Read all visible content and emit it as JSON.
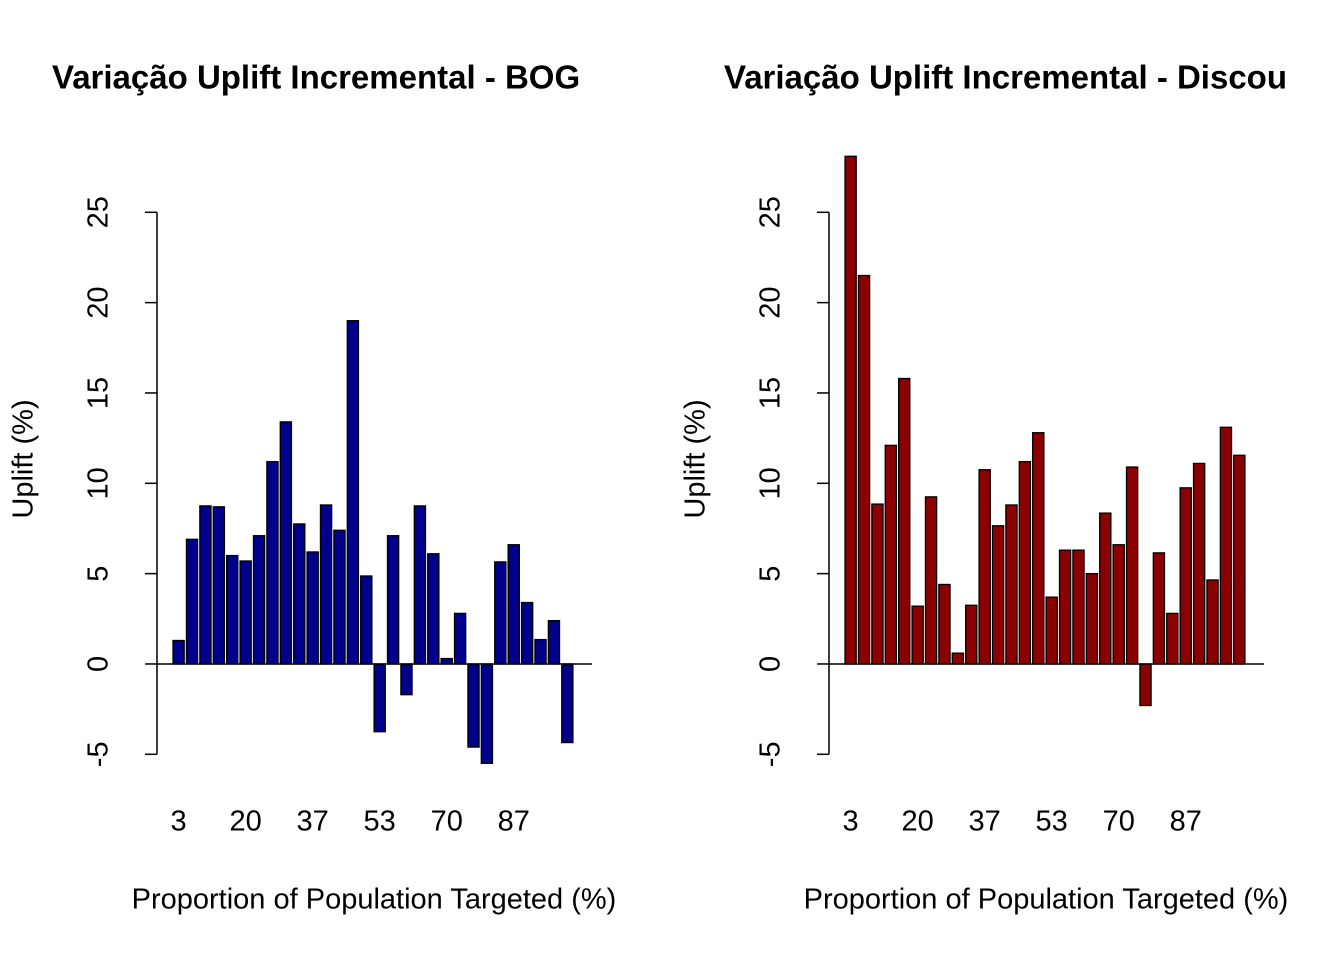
{
  "chart_data": [
    {
      "type": "bar",
      "title": "Variação Uplift Incremental - BOG",
      "xlabel": "Proportion of Population Targeted (%)",
      "ylabel": "Uplift (%)",
      "categories": [
        "3",
        null,
        null,
        null,
        null,
        "20",
        null,
        null,
        null,
        null,
        "37",
        null,
        null,
        null,
        null,
        "53",
        null,
        null,
        null,
        null,
        "70",
        null,
        null,
        null,
        null,
        "87",
        null,
        null,
        null,
        null
      ],
      "values": [
        1.3,
        6.9,
        8.75,
        8.7,
        6.0,
        5.7,
        7.1,
        11.2,
        13.4,
        7.75,
        6.2,
        8.8,
        7.4,
        19.0,
        4.87,
        -3.75,
        7.1,
        -1.7,
        8.75,
        6.1,
        0.3,
        2.8,
        -4.6,
        -5.5,
        5.65,
        6.6,
        3.4,
        1.35,
        2.4,
        -4.35
      ],
      "color": "#00008b",
      "ylim": [
        -6.3,
        29.3
      ],
      "yticks": [
        -5,
        0,
        5,
        10,
        15,
        20,
        25
      ]
    },
    {
      "type": "bar",
      "title": "Variação Uplift Incremental - Discou",
      "xlabel": "Proportion of Population Targeted (%)",
      "ylabel": "Uplift (%)",
      "categories": [
        "3",
        null,
        null,
        null,
        null,
        "20",
        null,
        null,
        null,
        null,
        "37",
        null,
        null,
        null,
        null,
        "53",
        null,
        null,
        null,
        null,
        "70",
        null,
        null,
        null,
        null,
        "87",
        null,
        null,
        null,
        null
      ],
      "values": [
        28.1,
        21.5,
        8.85,
        12.1,
        15.8,
        3.2,
        9.25,
        4.4,
        0.6,
        3.25,
        10.75,
        7.65,
        8.8,
        11.2,
        12.8,
        3.7,
        6.3,
        6.3,
        5.0,
        8.35,
        6.6,
        10.9,
        -2.3,
        6.15,
        2.8,
        9.75,
        11.1,
        4.65,
        13.1,
        11.55
      ],
      "color": "#8b0000",
      "ylim": [
        -6.3,
        29.3
      ],
      "yticks": [
        -5,
        0,
        5,
        10,
        15,
        20,
        25
      ]
    }
  ]
}
